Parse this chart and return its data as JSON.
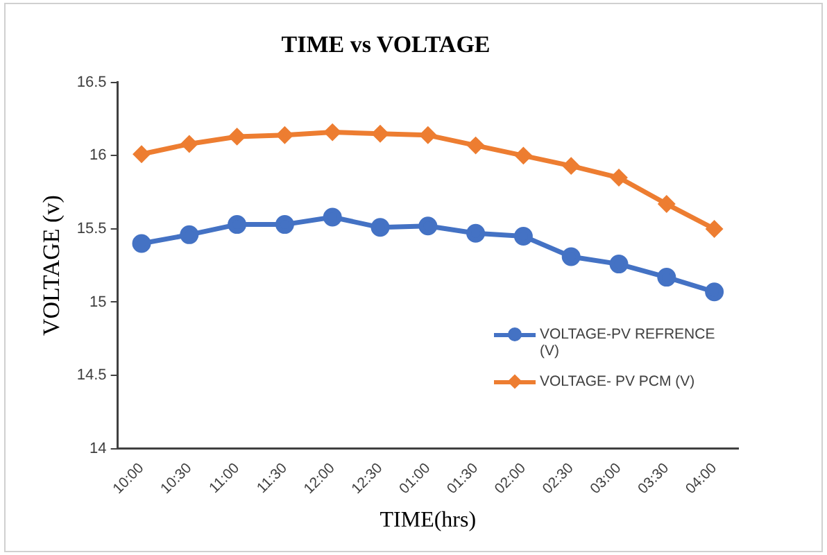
{
  "chart_data": {
    "type": "line",
    "title": "TIME vs VOLTAGE",
    "xlabel": "TIME(hrs)",
    "ylabel": "VOLTAGE (v)",
    "categories": [
      "10:00",
      "10:30",
      "11:00",
      "11:30",
      "12:00",
      "12:30",
      "01:00",
      "01:30",
      "02:00",
      "02:30",
      "03:00",
      "03:30",
      "04:00"
    ],
    "series": [
      {
        "name": "VOLTAGE-PV REFRENCE (V)",
        "color": "#4472c4",
        "marker": "circle",
        "values": [
          15.4,
          15.46,
          15.53,
          15.53,
          15.58,
          15.51,
          15.52,
          15.47,
          15.45,
          15.31,
          15.26,
          15.17,
          15.07
        ]
      },
      {
        "name": "VOLTAGE- PV PCM (V)",
        "color": "#ed7d31",
        "marker": "diamond",
        "values": [
          16.01,
          16.08,
          16.13,
          16.14,
          16.16,
          16.15,
          16.14,
          16.07,
          16.0,
          15.93,
          15.85,
          15.67,
          15.5
        ]
      }
    ],
    "ylim": [
      14,
      16.5
    ],
    "yticks": [
      14,
      14.5,
      15,
      15.5,
      16,
      16.5
    ],
    "grid": false,
    "legend": "right"
  }
}
